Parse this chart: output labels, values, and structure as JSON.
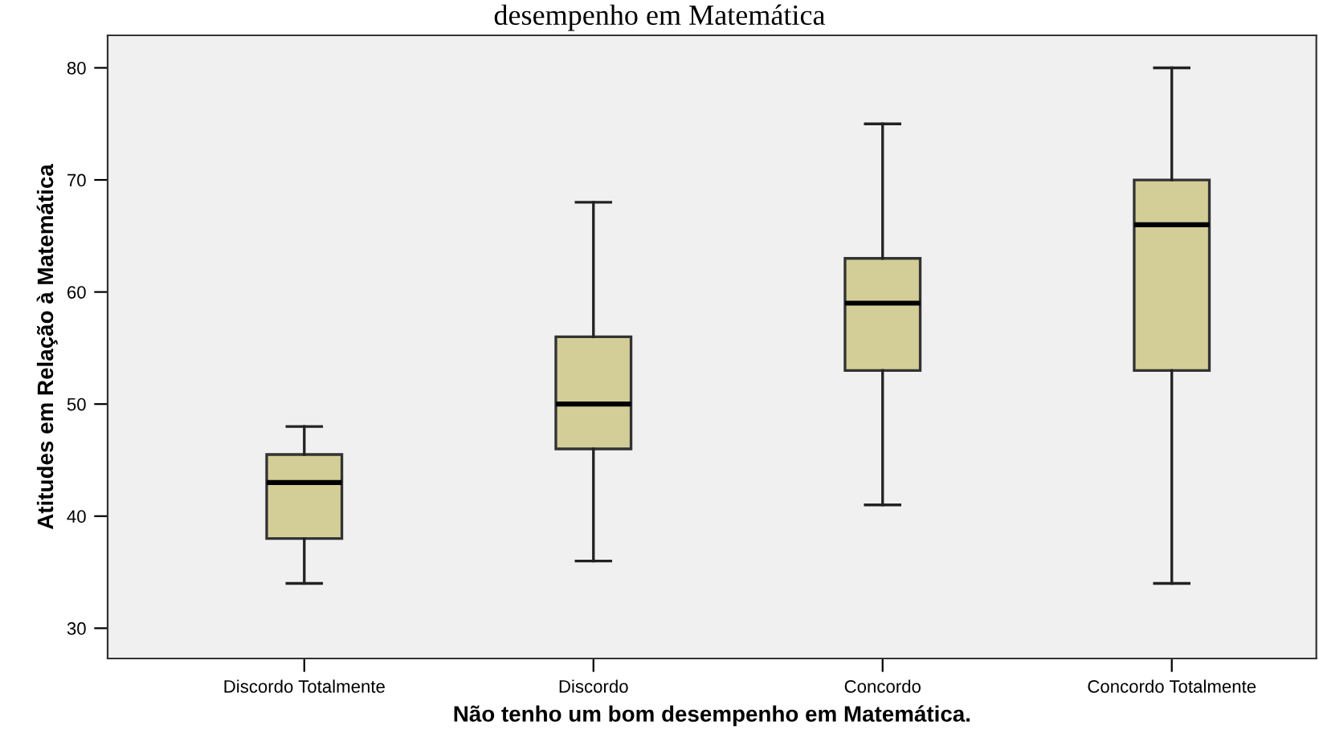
{
  "chart_data": {
    "type": "box",
    "title": "desempenho em Matemática",
    "xlabel": "Não tenho um bom desempenho em Matemática.",
    "ylabel": "Atitudes em Relação à Matemática",
    "categories": [
      "Discordo Totalmente",
      "Discordo",
      "Concordo",
      "Concordo Totalmente"
    ],
    "boxes": [
      {
        "low": 34,
        "q1": 38,
        "median": 43,
        "q3": 45.5,
        "high": 48
      },
      {
        "low": 36,
        "q1": 46,
        "median": 50,
        "q3": 56,
        "high": 68
      },
      {
        "low": 41,
        "q1": 53,
        "median": 59,
        "q3": 63,
        "high": 75
      },
      {
        "low": 34,
        "q1": 53,
        "median": 66,
        "q3": 70,
        "high": 80
      }
    ],
    "color": "#d3ce97",
    "ylim": [
      27.3,
      82.9
    ],
    "yticks": [
      30,
      40,
      50,
      60,
      70,
      80
    ],
    "grid": false
  }
}
